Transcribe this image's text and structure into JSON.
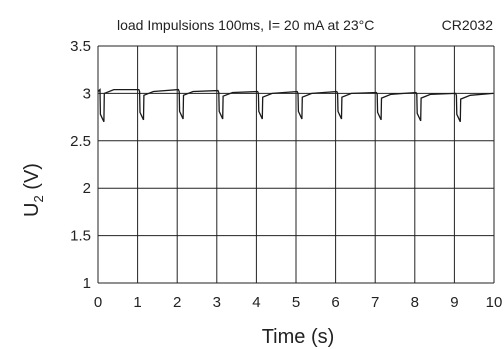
{
  "chart_data": {
    "type": "line",
    "title": "load Impulsions 100ms, I= 20 mA at 23°C",
    "title_right": "CR2032",
    "xlabel": "Time (s)",
    "ylabel_main": "U",
    "ylabel_sub": "2",
    "ylabel_unit": " (V)",
    "xlim": [
      0,
      10
    ],
    "ylim": [
      1,
      3.5
    ],
    "x_ticks": [
      0,
      1,
      2,
      3,
      4,
      5,
      6,
      7,
      8,
      9,
      10
    ],
    "x_tick_labels": [
      "0",
      "1",
      "2",
      "3",
      "4",
      "5",
      "6",
      "7",
      "8",
      "9",
      "10"
    ],
    "y_ticks": [
      1,
      1.5,
      2,
      2.5,
      3,
      3.5
    ],
    "y_tick_labels": [
      "1",
      "1.5",
      "2",
      "2.5",
      "3",
      "3.5"
    ],
    "grid": true,
    "line_color": "#1a1a1a",
    "grid_color": "#222222",
    "series": [
      {
        "pulse_times": [
          0.05,
          1.05,
          2.05,
          3.05,
          4.05,
          5.05,
          6.05,
          7.05,
          8.05,
          9.05
        ],
        "rest_voltage": [
          3.06,
          3.04,
          3.04,
          3.03,
          3.02,
          3.02,
          3.02,
          3.01,
          3.01,
          3.0
        ],
        "min_voltage": [
          2.7,
          2.72,
          2.73,
          2.73,
          2.73,
          2.73,
          2.73,
          2.72,
          2.71,
          2.7
        ]
      }
    ]
  }
}
